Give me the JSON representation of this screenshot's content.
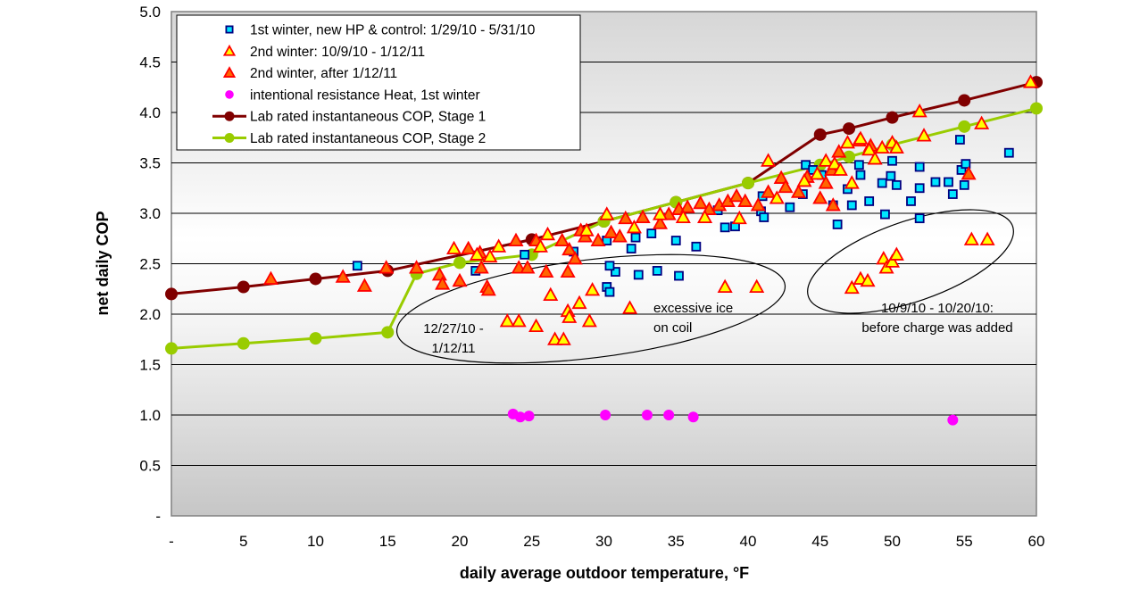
{
  "chart_data": {
    "type": "scatter",
    "title": "",
    "xlabel": "daily average outdoor temperature, °F",
    "ylabel": "net daily COP",
    "xlim": [
      0,
      60
    ],
    "ylim": [
      0,
      5.0
    ],
    "x_ticks": [
      0,
      5,
      10,
      15,
      20,
      25,
      30,
      35,
      40,
      45,
      50,
      55,
      60
    ],
    "x_tick_labels": [
      "-",
      "5",
      "10",
      "15",
      "20",
      "25",
      "30",
      "35",
      "40",
      "45",
      "50",
      "55",
      "60"
    ],
    "y_ticks": [
      0,
      0.5,
      1.0,
      1.5,
      2.0,
      2.5,
      3.0,
      3.5,
      4.0,
      4.5,
      5.0
    ],
    "y_tick_labels": [
      "-",
      "0.5",
      "1.0",
      "1.5",
      "2.0",
      "2.5",
      "3.0",
      "3.5",
      "4.0",
      "4.5",
      "5.0"
    ],
    "grid": "horizontal",
    "legend_position": "top-left",
    "series": [
      {
        "name": "1st winter, new HP & control: 1/29/10 - 5/31/10",
        "marker": "square",
        "fill": "#00e5ff",
        "stroke": "#000080",
        "line": false,
        "points": [
          [
            12.9,
            2.48
          ],
          [
            21.1,
            2.43
          ],
          [
            24.5,
            2.59
          ],
          [
            27.9,
            2.62
          ],
          [
            30.2,
            2.27
          ],
          [
            30.4,
            2.22
          ],
          [
            30.8,
            2.42
          ],
          [
            30.4,
            2.48
          ],
          [
            32.4,
            2.39
          ],
          [
            33.7,
            2.43
          ],
          [
            35.2,
            2.38
          ],
          [
            31.9,
            2.65
          ],
          [
            32.2,
            2.76
          ],
          [
            33.3,
            2.8
          ],
          [
            35.0,
            2.73
          ],
          [
            36.4,
            2.67
          ],
          [
            30.2,
            2.73
          ],
          [
            37.9,
            3.03
          ],
          [
            38.4,
            2.86
          ],
          [
            39.1,
            2.87
          ],
          [
            40.9,
            3.02
          ],
          [
            41.1,
            2.96
          ],
          [
            41.0,
            3.17
          ],
          [
            42.9,
            3.06
          ],
          [
            43.8,
            3.19
          ],
          [
            44.0,
            3.48
          ],
          [
            44.5,
            3.43
          ],
          [
            45.1,
            3.38
          ],
          [
            45.9,
            3.08
          ],
          [
            46.2,
            2.89
          ],
          [
            46.9,
            3.24
          ],
          [
            47.2,
            3.08
          ],
          [
            47.7,
            3.48
          ],
          [
            47.8,
            3.38
          ],
          [
            48.4,
            3.12
          ],
          [
            49.3,
            3.3
          ],
          [
            49.5,
            2.99
          ],
          [
            49.9,
            3.37
          ],
          [
            50.0,
            3.52
          ],
          [
            50.3,
            3.28
          ],
          [
            51.3,
            3.12
          ],
          [
            51.9,
            3.25
          ],
          [
            51.9,
            2.95
          ],
          [
            51.9,
            3.46
          ],
          [
            53.0,
            3.31
          ],
          [
            53.9,
            3.31
          ],
          [
            54.2,
            3.19
          ],
          [
            54.7,
            3.73
          ],
          [
            54.8,
            3.43
          ],
          [
            55.1,
            3.49
          ],
          [
            55.0,
            3.28
          ],
          [
            58.1,
            3.6
          ]
        ]
      },
      {
        "name": "2nd winter: 10/9/10 - 1/12/11",
        "marker": "triangle",
        "fill": "#ffff00",
        "stroke": "#ff0000",
        "line": false,
        "points": [
          [
            19.6,
            2.65
          ],
          [
            21.2,
            2.59
          ],
          [
            22.1,
            2.57
          ],
          [
            22.7,
            2.67
          ],
          [
            23.3,
            1.93
          ],
          [
            24.1,
            1.93
          ],
          [
            25.3,
            1.88
          ],
          [
            26.6,
            1.75
          ],
          [
            27.2,
            1.75
          ],
          [
            26.3,
            2.19
          ],
          [
            27.5,
            2.03
          ],
          [
            27.6,
            1.97
          ],
          [
            28.3,
            2.11
          ],
          [
            29.0,
            1.93
          ],
          [
            29.2,
            2.24
          ],
          [
            26.1,
            2.79
          ],
          [
            25.6,
            2.67
          ],
          [
            28.8,
            2.83
          ],
          [
            30.2,
            2.99
          ],
          [
            32.1,
            2.86
          ],
          [
            31.8,
            2.06
          ],
          [
            33.9,
            2.99
          ],
          [
            35.5,
            2.96
          ],
          [
            37.0,
            2.96
          ],
          [
            38.4,
            2.27
          ],
          [
            40.6,
            2.27
          ],
          [
            41.4,
            3.52
          ],
          [
            39.4,
            2.95
          ],
          [
            42.0,
            3.15
          ],
          [
            43.9,
            3.32
          ],
          [
            44.8,
            3.39
          ],
          [
            45.4,
            3.52
          ],
          [
            46.0,
            3.49
          ],
          [
            46.9,
            3.7
          ],
          [
            46.4,
            3.43
          ],
          [
            47.2,
            3.3
          ],
          [
            47.8,
            3.74
          ],
          [
            48.4,
            3.63
          ],
          [
            48.8,
            3.54
          ],
          [
            49.3,
            3.65
          ],
          [
            50.0,
            3.7
          ],
          [
            50.3,
            3.65
          ],
          [
            51.9,
            4.01
          ],
          [
            52.2,
            3.77
          ],
          [
            56.2,
            3.89
          ],
          [
            59.6,
            4.3
          ],
          [
            47.2,
            2.26
          ],
          [
            47.8,
            2.35
          ],
          [
            48.3,
            2.33
          ],
          [
            49.4,
            2.55
          ],
          [
            49.6,
            2.46
          ],
          [
            50.0,
            2.52
          ],
          [
            50.3,
            2.59
          ],
          [
            55.5,
            2.74
          ],
          [
            56.6,
            2.74
          ]
        ]
      },
      {
        "name": "2nd winter, after 1/12/11",
        "marker": "triangle",
        "fill": "#ff6600",
        "stroke": "#ff0000",
        "line": false,
        "points": [
          [
            6.9,
            2.35
          ],
          [
            11.9,
            2.37
          ],
          [
            13.4,
            2.28
          ],
          [
            14.9,
            2.46
          ],
          [
            17.0,
            2.46
          ],
          [
            18.6,
            2.39
          ],
          [
            18.8,
            2.3
          ],
          [
            20.0,
            2.33
          ],
          [
            20.6,
            2.65
          ],
          [
            21.4,
            2.61
          ],
          [
            21.5,
            2.46
          ],
          [
            21.9,
            2.27
          ],
          [
            22.0,
            2.24
          ],
          [
            24.1,
            2.46
          ],
          [
            24.7,
            2.46
          ],
          [
            23.9,
            2.73
          ],
          [
            25.3,
            2.73
          ],
          [
            26.0,
            2.42
          ],
          [
            27.5,
            2.42
          ],
          [
            27.6,
            2.64
          ],
          [
            28.0,
            2.55
          ],
          [
            27.1,
            2.73
          ],
          [
            28.7,
            2.77
          ],
          [
            28.4,
            2.83
          ],
          [
            29.6,
            2.73
          ],
          [
            30.5,
            2.81
          ],
          [
            31.1,
            2.77
          ],
          [
            31.5,
            2.95
          ],
          [
            32.7,
            2.96
          ],
          [
            33.9,
            2.9
          ],
          [
            34.5,
            2.99
          ],
          [
            35.2,
            3.04
          ],
          [
            35.8,
            3.06
          ],
          [
            36.7,
            3.1
          ],
          [
            37.3,
            3.04
          ],
          [
            38.0,
            3.08
          ],
          [
            38.6,
            3.12
          ],
          [
            39.2,
            3.17
          ],
          [
            39.8,
            3.12
          ],
          [
            40.7,
            3.08
          ],
          [
            41.4,
            3.21
          ],
          [
            42.3,
            3.35
          ],
          [
            42.6,
            3.26
          ],
          [
            43.5,
            3.21
          ],
          [
            44.1,
            3.36
          ],
          [
            45.0,
            3.15
          ],
          [
            45.4,
            3.3
          ],
          [
            45.8,
            3.43
          ],
          [
            45.9,
            3.08
          ],
          [
            46.3,
            3.61
          ],
          [
            47.7,
            3.72
          ],
          [
            48.5,
            3.67
          ],
          [
            55.3,
            3.39
          ]
        ]
      },
      {
        "name": "intentional resistance Heat, 1st winter",
        "marker": "circle",
        "fill": "#ff00ff",
        "stroke": "#ff00ff",
        "line": false,
        "points": [
          [
            23.7,
            1.01
          ],
          [
            24.2,
            0.98
          ],
          [
            24.8,
            0.99
          ],
          [
            30.1,
            1.0
          ],
          [
            33.0,
            1.0
          ],
          [
            34.5,
            1.0
          ],
          [
            36.2,
            0.98
          ],
          [
            54.2,
            0.95
          ]
        ]
      },
      {
        "name": "Lab rated instantaneous COP, Stage 1",
        "marker": "circle",
        "fill": "#800000",
        "stroke": "#800000",
        "line": true,
        "points": [
          [
            0,
            2.2
          ],
          [
            5,
            2.27
          ],
          [
            10,
            2.35
          ],
          [
            15,
            2.43
          ],
          [
            25,
            2.74
          ],
          [
            30,
            2.92
          ],
          [
            35,
            3.11
          ],
          [
            40,
            3.3
          ],
          [
            45,
            3.78
          ],
          [
            47,
            3.84
          ],
          [
            50,
            3.95
          ],
          [
            55,
            4.12
          ],
          [
            60,
            4.3
          ]
        ]
      },
      {
        "name": "Lab rated instantaneous COP, Stage 2",
        "marker": "circle",
        "fill": "#99cc00",
        "stroke": "#99cc00",
        "line": true,
        "points": [
          [
            0,
            1.66
          ],
          [
            5,
            1.71
          ],
          [
            10,
            1.76
          ],
          [
            15,
            1.82
          ],
          [
            17,
            2.4
          ],
          [
            20,
            2.51
          ],
          [
            25,
            2.59
          ],
          [
            30,
            2.92
          ],
          [
            35,
            3.11
          ],
          [
            40,
            3.3
          ],
          [
            45,
            3.48
          ],
          [
            47,
            3.56
          ],
          [
            50,
            3.68
          ],
          [
            55,
            3.86
          ],
          [
            60,
            4.04
          ]
        ]
      }
    ],
    "annotations": [
      {
        "lines": [
          "12/27/10 -",
          "1/12/11"
        ]
      },
      {
        "lines": [
          "excessive ice",
          "on coil"
        ]
      },
      {
        "lines": [
          "10/9/10 - 10/20/10:",
          "before charge was added"
        ]
      }
    ]
  }
}
